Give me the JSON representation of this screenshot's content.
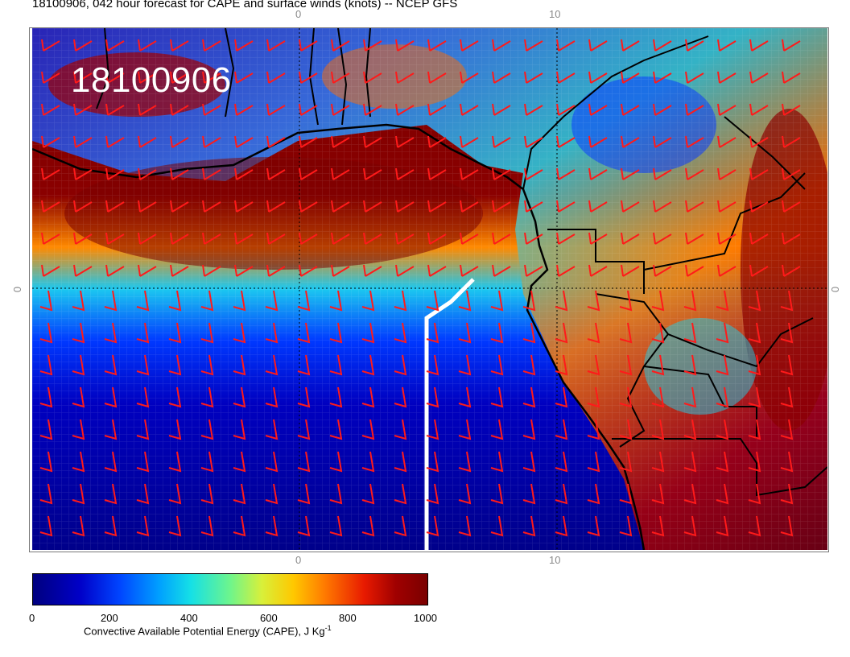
{
  "title": "18100906, 042 hour forecast for CAPE and surface winds (knots) -- NCEP GFS",
  "stamp": "18100906",
  "axes": {
    "top_ticks": [
      "0",
      "10"
    ],
    "bottom_ticks": [
      "0",
      "10"
    ],
    "left_tick": "0",
    "right_tick": "0"
  },
  "colorbar": {
    "ticks": [
      "0",
      "200",
      "400",
      "600",
      "800",
      "1000"
    ],
    "label": "Convective Available Potential Energy (CAPE), J Kg",
    "label_superscript": "-1",
    "colors": [
      "#00007f",
      "#0000c8",
      "#0045ff",
      "#00a0ff",
      "#15e0e6",
      "#6ef58c",
      "#d8f03a",
      "#ffc800",
      "#ff7a00",
      "#e81a00",
      "#a00000",
      "#7a0000"
    ]
  },
  "map": {
    "cape_range": [
      0,
      1000
    ],
    "wind_barb_color": "#ff1a1a",
    "coastline_color": "#000000",
    "track_color": "#ffffff",
    "grid": true
  }
}
